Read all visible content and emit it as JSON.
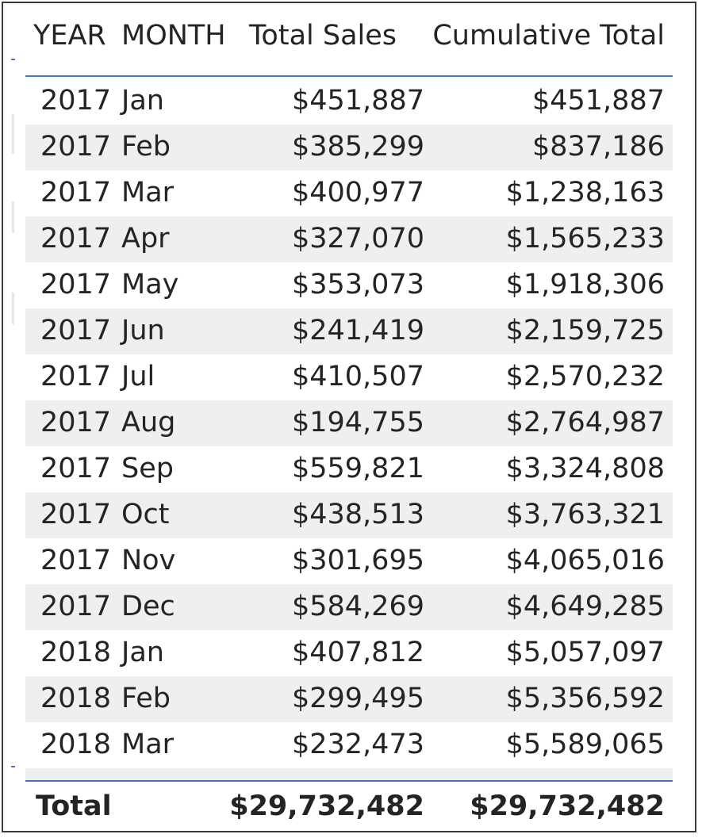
{
  "table": {
    "headers": {
      "year": "YEAR",
      "month": "MONTH",
      "total_sales": "Total Sales",
      "cumulative_total": "Cumulative Total"
    },
    "rows": [
      {
        "year": "2017",
        "month": "Jan",
        "total_sales": "$451,887",
        "cumulative_total": "$451,887"
      },
      {
        "year": "2017",
        "month": "Feb",
        "total_sales": "$385,299",
        "cumulative_total": "$837,186"
      },
      {
        "year": "2017",
        "month": "Mar",
        "total_sales": "$400,977",
        "cumulative_total": "$1,238,163"
      },
      {
        "year": "2017",
        "month": "Apr",
        "total_sales": "$327,070",
        "cumulative_total": "$1,565,233"
      },
      {
        "year": "2017",
        "month": "May",
        "total_sales": "$353,073",
        "cumulative_total": "$1,918,306"
      },
      {
        "year": "2017",
        "month": "Jun",
        "total_sales": "$241,419",
        "cumulative_total": "$2,159,725"
      },
      {
        "year": "2017",
        "month": "Jul",
        "total_sales": "$410,507",
        "cumulative_total": "$2,570,232"
      },
      {
        "year": "2017",
        "month": "Aug",
        "total_sales": "$194,755",
        "cumulative_total": "$2,764,987"
      },
      {
        "year": "2017",
        "month": "Sep",
        "total_sales": "$559,821",
        "cumulative_total": "$3,324,808"
      },
      {
        "year": "2017",
        "month": "Oct",
        "total_sales": "$438,513",
        "cumulative_total": "$3,763,321"
      },
      {
        "year": "2017",
        "month": "Nov",
        "total_sales": "$301,695",
        "cumulative_total": "$4,065,016"
      },
      {
        "year": "2017",
        "month": "Dec",
        "total_sales": "$584,269",
        "cumulative_total": "$4,649,285"
      },
      {
        "year": "2018",
        "month": "Jan",
        "total_sales": "$407,812",
        "cumulative_total": "$5,057,097"
      },
      {
        "year": "2018",
        "month": "Feb",
        "total_sales": "$299,495",
        "cumulative_total": "$5,356,592"
      },
      {
        "year": "2018",
        "month": "Mar",
        "total_sales": "$232,473",
        "cumulative_total": "$5,589,065"
      }
    ],
    "total": {
      "label": "Total",
      "total_sales": "$29,732,482",
      "cumulative_total": "$29,732,482"
    },
    "colors": {
      "header_rule": "#4472c4",
      "alt_row": "#efefef",
      "text": "#252423"
    }
  }
}
